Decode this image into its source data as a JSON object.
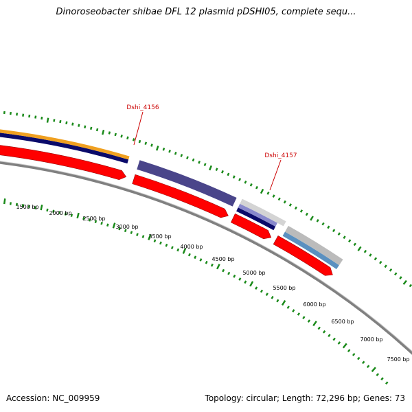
{
  "title": "Dinoroseobacter shibae DFL 12 plasmid pDSHI05, complete sequ...",
  "footer": {
    "accession": "Accession: NC_009959",
    "summary": "Topology: circular; Length: 72,296 bp; Genes: 73"
  },
  "scale_labels": [
    "1500 bp",
    "2000 bp",
    "2500 bp",
    "3000 bp",
    "3500 bp",
    "4000 bp",
    "4500 bp",
    "5000 bp",
    "5500 bp",
    "6000 bp",
    "6500 bp",
    "7000 bp",
    "7500 bp"
  ],
  "gene_labels": [
    "Dshi_4156",
    "Dshi_4157"
  ],
  "colors": {
    "forward_cds": "#ff0000",
    "backbone": "#808080",
    "ticks": "#1a8a1a",
    "label": "#cc0000",
    "blue_feature": "#1010ff",
    "grey_feature": "#5a5a5a",
    "orange_feature": "#f0a020",
    "navy_feature": "#0a0a6a",
    "purple_feature": "#4a458a",
    "lavender_feature": "#8888cc",
    "steel_feature": "#5a90c0",
    "light_grey_feature": "#bbbbbb"
  }
}
